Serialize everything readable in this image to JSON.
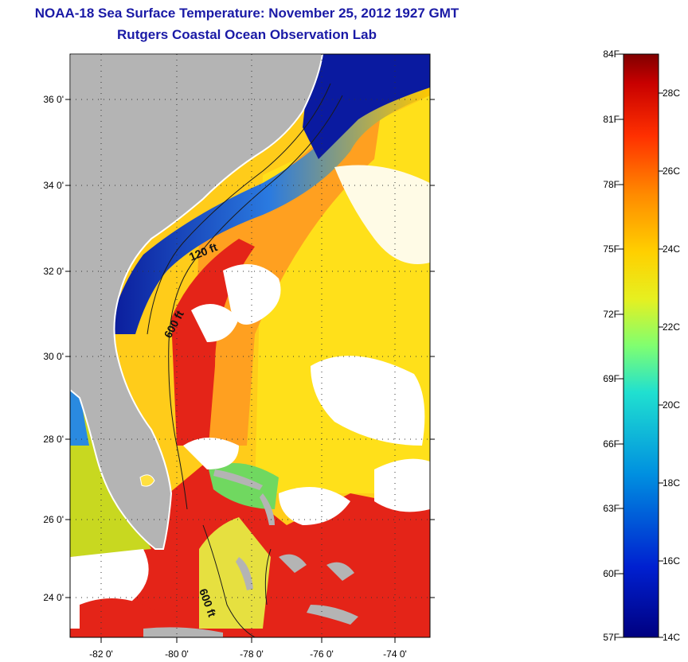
{
  "title": {
    "line1": "NOAA-18 Sea Surface Temperature:  November 25, 2012 1927 GMT",
    "line2": "Rutgers Coastal Ocean Observation Lab"
  },
  "axes": {
    "lat_labels": [
      "36 0'",
      "34 0'",
      "32 0'",
      "30 0'",
      "28 0'",
      "26 0'",
      "24 0'"
    ],
    "lon_labels": [
      "-82 0'",
      "-80 0'",
      "-78 0'",
      "-76 0'",
      "-74 0'"
    ]
  },
  "contours": {
    "label_120": "120 ft",
    "label_600a": "600 ft",
    "label_600b": "600 ft"
  },
  "colorbar": {
    "fahrenheit": [
      "84F",
      "81F",
      "78F",
      "75F",
      "72F",
      "69F",
      "66F",
      "63F",
      "60F",
      "57F"
    ],
    "celsius": [
      "28C",
      "26C",
      "24C",
      "22C",
      "20C",
      "18C",
      "16C",
      "14C"
    ]
  },
  "colors": {
    "land": "#b4b4b4",
    "cold": "#0a1aa0",
    "warm": "#e4201a",
    "cloud": "#ffffff",
    "title": "#1a1aa6"
  }
}
